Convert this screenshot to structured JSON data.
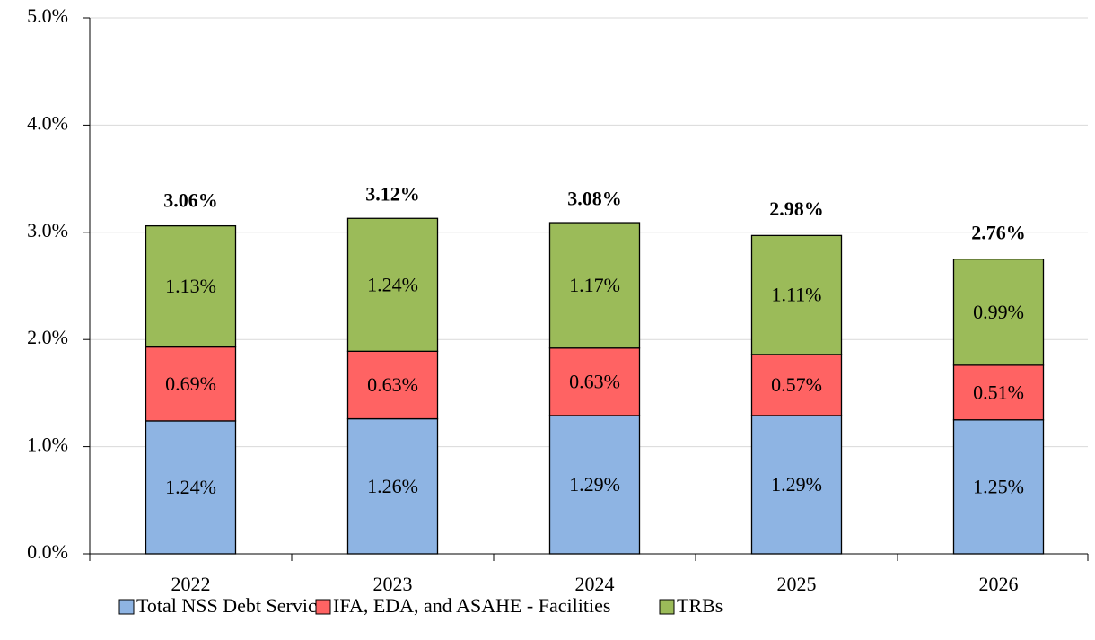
{
  "chart_data": {
    "type": "stacked_bar",
    "categories": [
      "2022",
      "2023",
      "2024",
      "2025",
      "2026"
    ],
    "series": [
      {
        "name": "Total NSS Debt Service",
        "color": "#8eb4e3",
        "values": [
          1.24,
          1.26,
          1.29,
          1.29,
          1.25
        ],
        "value_labels": [
          "1.24%",
          "1.26%",
          "1.29%",
          "1.29%",
          "1.25%"
        ]
      },
      {
        "name": "IFA, EDA, and ASAHE - Facilities",
        "color": "#ff6363",
        "values": [
          0.69,
          0.63,
          0.63,
          0.57,
          0.51
        ],
        "value_labels": [
          "0.69%",
          "0.63%",
          "0.63%",
          "0.57%",
          "0.51%"
        ]
      },
      {
        "name": "TRBs",
        "color": "#9bbb59",
        "values": [
          1.13,
          1.24,
          1.17,
          1.11,
          0.99
        ],
        "value_labels": [
          "1.13%",
          "1.24%",
          "1.17%",
          "1.11%",
          "0.99%"
        ]
      }
    ],
    "totals": [
      3.06,
      3.12,
      3.08,
      2.98,
      2.76
    ],
    "total_labels": [
      "3.06%",
      "3.12%",
      "3.08%",
      "2.98%",
      "2.76%"
    ],
    "ylim": [
      0,
      5
    ],
    "yticks": [
      {
        "value": 0,
        "label": "0.0%"
      },
      {
        "value": 1,
        "label": "1.0%"
      },
      {
        "value": 2,
        "label": "2.0%"
      },
      {
        "value": 3,
        "label": "3.0%"
      },
      {
        "value": 4,
        "label": "4.0%"
      },
      {
        "value": 5,
        "label": "5.0%"
      }
    ],
    "grid": true,
    "legend": "bottom"
  }
}
